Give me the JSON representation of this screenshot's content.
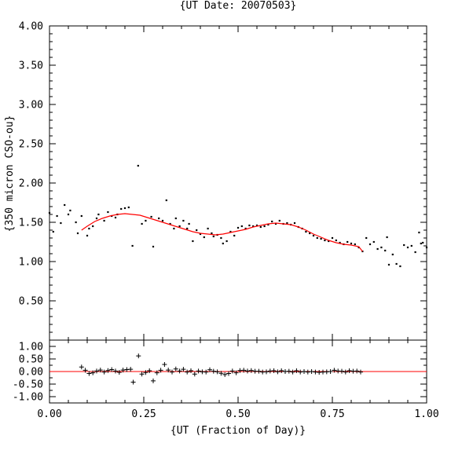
{
  "chart_data": [
    {
      "type": "scatter",
      "title": "{UT Date: 20070503}",
      "xlabel": "",
      "ylabel": "{350 micron CSO-ou}",
      "xlim": [
        0.0,
        1.0
      ],
      "ylim": [
        0.0,
        4.0
      ],
      "y_ticks": [
        "0.50",
        "1.00",
        "1.50",
        "2.00",
        "2.50",
        "3.00",
        "3.50",
        "4.00"
      ],
      "grid": false,
      "series": [
        {
          "marker": "dot",
          "color": "#000000",
          "points": [
            [
              0.0,
              1.62
            ],
            [
              0.01,
              1.38
            ],
            [
              0.02,
              1.58
            ],
            [
              0.03,
              1.49
            ],
            [
              0.04,
              1.72
            ],
            [
              0.05,
              1.6
            ],
            [
              0.055,
              1.65
            ],
            [
              0.07,
              1.5
            ],
            [
              0.075,
              1.36
            ],
            [
              0.085,
              1.58
            ],
            [
              0.1,
              1.33
            ],
            [
              0.105,
              1.42
            ],
            [
              0.115,
              1.45
            ],
            [
              0.125,
              1.55
            ],
            [
              0.13,
              1.6
            ],
            [
              0.145,
              1.52
            ],
            [
              0.155,
              1.63
            ],
            [
              0.165,
              1.58
            ],
            [
              0.175,
              1.56
            ],
            [
              0.18,
              1.6
            ],
            [
              0.19,
              1.67
            ],
            [
              0.2,
              1.68
            ],
            [
              0.21,
              1.69
            ],
            [
              0.22,
              1.2
            ],
            [
              0.235,
              2.22
            ],
            [
              0.245,
              1.48
            ],
            [
              0.255,
              1.52
            ],
            [
              0.27,
              1.57
            ],
            [
              0.275,
              1.19
            ],
            [
              0.29,
              1.55
            ],
            [
              0.3,
              1.52
            ],
            [
              0.31,
              1.78
            ],
            [
              0.32,
              1.48
            ],
            [
              0.33,
              1.42
            ],
            [
              0.335,
              1.55
            ],
            [
              0.345,
              1.45
            ],
            [
              0.355,
              1.52
            ],
            [
              0.365,
              1.42
            ],
            [
              0.37,
              1.48
            ],
            [
              0.38,
              1.26
            ],
            [
              0.39,
              1.4
            ],
            [
              0.4,
              1.35
            ],
            [
              0.41,
              1.31
            ],
            [
              0.42,
              1.42
            ],
            [
              0.43,
              1.36
            ],
            [
              0.435,
              1.32
            ],
            [
              0.445,
              1.34
            ],
            [
              0.455,
              1.3
            ],
            [
              0.46,
              1.23
            ],
            [
              0.47,
              1.26
            ],
            [
              0.48,
              1.38
            ],
            [
              0.49,
              1.33
            ],
            [
              0.5,
              1.43
            ],
            [
              0.51,
              1.45
            ],
            [
              0.52,
              1.42
            ],
            [
              0.53,
              1.46
            ],
            [
              0.54,
              1.45
            ],
            [
              0.55,
              1.46
            ],
            [
              0.56,
              1.44
            ],
            [
              0.57,
              1.45
            ],
            [
              0.58,
              1.47
            ],
            [
              0.59,
              1.51
            ],
            [
              0.6,
              1.48
            ],
            [
              0.61,
              1.52
            ],
            [
              0.62,
              1.48
            ],
            [
              0.63,
              1.49
            ],
            [
              0.64,
              1.47
            ],
            [
              0.65,
              1.49
            ],
            [
              0.66,
              1.44
            ],
            [
              0.67,
              1.42
            ],
            [
              0.68,
              1.38
            ],
            [
              0.69,
              1.36
            ],
            [
              0.7,
              1.33
            ],
            [
              0.71,
              1.3
            ],
            [
              0.72,
              1.29
            ],
            [
              0.73,
              1.27
            ],
            [
              0.74,
              1.26
            ],
            [
              0.75,
              1.3
            ],
            [
              0.76,
              1.27
            ],
            [
              0.77,
              1.24
            ],
            [
              0.78,
              1.22
            ],
            [
              0.79,
              1.25
            ],
            [
              0.8,
              1.23
            ],
            [
              0.81,
              1.22
            ],
            [
              0.82,
              1.18
            ],
            [
              0.83,
              1.13
            ],
            [
              0.84,
              1.3
            ],
            [
              0.85,
              1.22
            ],
            [
              0.86,
              1.25
            ],
            [
              0.87,
              1.16
            ],
            [
              0.88,
              1.18
            ],
            [
              0.89,
              1.14
            ],
            [
              0.895,
              1.31
            ],
            [
              0.9,
              0.96
            ],
            [
              0.91,
              1.09
            ],
            [
              0.92,
              0.97
            ],
            [
              0.93,
              0.94
            ],
            [
              0.94,
              1.21
            ],
            [
              0.95,
              1.18
            ],
            [
              0.96,
              1.2
            ],
            [
              0.97,
              1.12
            ],
            [
              0.98,
              1.37
            ],
            [
              0.985,
              1.23
            ],
            [
              0.99,
              1.24
            ],
            [
              1.0,
              1.18
            ]
          ]
        },
        {
          "marker": "line",
          "color": "#ff0000",
          "points": [
            [
              0.085,
              1.4
            ],
            [
              0.1,
              1.45
            ],
            [
              0.12,
              1.51
            ],
            [
              0.14,
              1.55
            ],
            [
              0.16,
              1.58
            ],
            [
              0.18,
              1.6
            ],
            [
              0.2,
              1.61
            ],
            [
              0.22,
              1.6
            ],
            [
              0.24,
              1.59
            ],
            [
              0.26,
              1.56
            ],
            [
              0.28,
              1.53
            ],
            [
              0.3,
              1.5
            ],
            [
              0.32,
              1.47
            ],
            [
              0.34,
              1.44
            ],
            [
              0.36,
              1.41
            ],
            [
              0.38,
              1.38
            ],
            [
              0.4,
              1.36
            ],
            [
              0.42,
              1.35
            ],
            [
              0.44,
              1.34
            ],
            [
              0.46,
              1.35
            ],
            [
              0.48,
              1.37
            ],
            [
              0.5,
              1.39
            ],
            [
              0.52,
              1.41
            ],
            [
              0.54,
              1.44
            ],
            [
              0.56,
              1.46
            ],
            [
              0.58,
              1.48
            ],
            [
              0.6,
              1.49
            ],
            [
              0.62,
              1.48
            ],
            [
              0.64,
              1.47
            ],
            [
              0.66,
              1.44
            ],
            [
              0.68,
              1.4
            ],
            [
              0.7,
              1.35
            ],
            [
              0.72,
              1.31
            ],
            [
              0.74,
              1.27
            ],
            [
              0.76,
              1.24
            ],
            [
              0.78,
              1.22
            ],
            [
              0.8,
              1.21
            ],
            [
              0.82,
              1.19
            ],
            [
              0.83,
              1.13
            ]
          ]
        }
      ]
    },
    {
      "type": "scatter",
      "title": "",
      "xlabel": "{UT (Fraction of Day)}",
      "ylabel": "",
      "xlim": [
        0.0,
        1.0
      ],
      "ylim": [
        -1.25,
        1.25
      ],
      "x_ticks": [
        "0.00",
        "0.25",
        "0.50",
        "0.75",
        "1.00"
      ],
      "y_ticks": [
        "-1.00",
        "-0.50",
        "0.00",
        "0.50",
        "1.00"
      ],
      "grid": false,
      "reference_line": {
        "y": 0.0,
        "color": "#ff0000"
      },
      "series": [
        {
          "marker": "plus",
          "color": "#000000",
          "points": [
            [
              0.085,
              0.18
            ],
            [
              0.095,
              0.05
            ],
            [
              0.105,
              -0.08
            ],
            [
              0.115,
              -0.05
            ],
            [
              0.125,
              0.02
            ],
            [
              0.135,
              0.06
            ],
            [
              0.145,
              -0.02
            ],
            [
              0.155,
              0.04
            ],
            [
              0.165,
              0.08
            ],
            [
              0.175,
              0.02
            ],
            [
              0.185,
              -0.03
            ],
            [
              0.195,
              0.06
            ],
            [
              0.205,
              0.08
            ],
            [
              0.215,
              0.09
            ],
            [
              0.222,
              -0.42
            ],
            [
              0.236,
              0.62
            ],
            [
              0.245,
              -0.1
            ],
            [
              0.255,
              -0.04
            ],
            [
              0.265,
              0.03
            ],
            [
              0.275,
              -0.37
            ],
            [
              0.285,
              -0.05
            ],
            [
              0.295,
              0.05
            ],
            [
              0.305,
              0.28
            ],
            [
              0.315,
              0.06
            ],
            [
              0.325,
              -0.02
            ],
            [
              0.335,
              0.1
            ],
            [
              0.345,
              0.02
            ],
            [
              0.355,
              0.09
            ],
            [
              0.365,
              -0.02
            ],
            [
              0.375,
              0.03
            ],
            [
              0.385,
              -0.1
            ],
            [
              0.395,
              0.02
            ],
            [
              0.405,
              -0.01
            ],
            [
              0.415,
              -0.02
            ],
            [
              0.425,
              0.07
            ],
            [
              0.435,
              0.01
            ],
            [
              0.445,
              -0.01
            ],
            [
              0.455,
              -0.07
            ],
            [
              0.465,
              -0.12
            ],
            [
              0.475,
              -0.08
            ],
            [
              0.485,
              0.02
            ],
            [
              0.495,
              -0.05
            ],
            [
              0.505,
              0.04
            ],
            [
              0.515,
              0.05
            ],
            [
              0.525,
              0.02
            ],
            [
              0.535,
              0.04
            ],
            [
              0.545,
              0.01
            ],
            [
              0.555,
              0.01
            ],
            [
              0.565,
              -0.02
            ],
            [
              0.575,
              -0.01
            ],
            [
              0.585,
              0.02
            ],
            [
              0.595,
              0.03
            ],
            [
              0.605,
              -0.01
            ],
            [
              0.615,
              0.03
            ],
            [
              0.625,
              0.0
            ],
            [
              0.635,
              0.01
            ],
            [
              0.645,
              -0.02
            ],
            [
              0.655,
              0.03
            ],
            [
              0.665,
              -0.02
            ],
            [
              0.675,
              0.0
            ],
            [
              0.685,
              -0.02
            ],
            [
              0.695,
              0.0
            ],
            [
              0.705,
              -0.02
            ],
            [
              0.715,
              -0.03
            ],
            [
              0.725,
              -0.02
            ],
            [
              0.735,
              -0.01
            ],
            [
              0.745,
              0.0
            ],
            [
              0.755,
              0.05
            ],
            [
              0.765,
              0.02
            ],
            [
              0.775,
              0.01
            ],
            [
              0.785,
              -0.02
            ],
            [
              0.795,
              0.03
            ],
            [
              0.805,
              0.01
            ],
            [
              0.815,
              0.02
            ],
            [
              0.825,
              -0.02
            ]
          ]
        }
      ]
    }
  ]
}
